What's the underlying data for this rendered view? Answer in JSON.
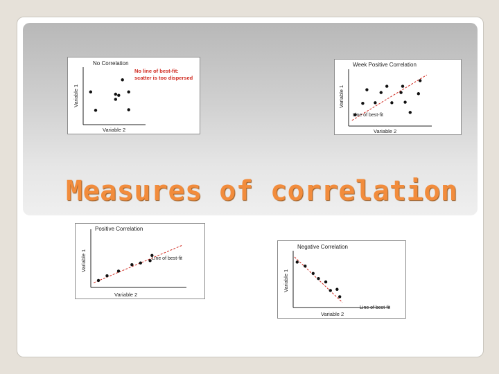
{
  "slide": {
    "title": "Measures of correlation"
  },
  "chart_data": [
    {
      "type": "scatter",
      "title": "No Correlation",
      "xlabel": "Variable 2",
      "ylabel": "Variable 1",
      "xlim": [
        0,
        10
      ],
      "ylim": [
        0,
        10
      ],
      "points": [
        {
          "x": 1.2,
          "y": 5.7
        },
        {
          "x": 2.0,
          "y": 2.5
        },
        {
          "x": 5.2,
          "y": 5.3
        },
        {
          "x": 5.2,
          "y": 4.4
        },
        {
          "x": 6.3,
          "y": 7.8
        },
        {
          "x": 7.3,
          "y": 5.7
        },
        {
          "x": 7.3,
          "y": 2.6
        },
        {
          "x": 5.7,
          "y": 5.1
        }
      ],
      "annotation": {
        "lines": [
          "No line of best-fit:",
          "scatter is too dispersed"
        ],
        "color": "#d0281e"
      }
    },
    {
      "type": "scatter",
      "title": "Week Positive Correlation",
      "xlabel": "Variable 2",
      "ylabel": "Variable 1",
      "xlim": [
        0,
        10
      ],
      "ylim": [
        0,
        10
      ],
      "points": [
        {
          "x": 0.8,
          "y": 2.0
        },
        {
          "x": 1.7,
          "y": 4.0
        },
        {
          "x": 2.2,
          "y": 6.4
        },
        {
          "x": 3.2,
          "y": 4.1
        },
        {
          "x": 3.9,
          "y": 5.9
        },
        {
          "x": 4.6,
          "y": 7.0
        },
        {
          "x": 5.2,
          "y": 4.1
        },
        {
          "x": 6.3,
          "y": 5.9
        },
        {
          "x": 6.5,
          "y": 7.0
        },
        {
          "x": 6.8,
          "y": 4.2
        },
        {
          "x": 7.4,
          "y": 2.4
        },
        {
          "x": 8.4,
          "y": 5.7
        },
        {
          "x": 8.6,
          "y": 8.0
        }
      ],
      "fit_line": {
        "x": [
          0.4,
          9.4
        ],
        "y": [
          1.0,
          9.0
        ],
        "label": "Line of best-fit",
        "color": "#d0281e"
      }
    },
    {
      "type": "scatter",
      "title": "Positive Correlation",
      "xlabel": "Variable 2",
      "ylabel": "Variable 1",
      "xlim": [
        0,
        10
      ],
      "ylim": [
        0,
        10
      ],
      "points": [
        {
          "x": 0.8,
          "y": 1.2
        },
        {
          "x": 1.7,
          "y": 2.0
        },
        {
          "x": 2.9,
          "y": 2.8
        },
        {
          "x": 4.3,
          "y": 3.9
        },
        {
          "x": 5.2,
          "y": 4.2
        },
        {
          "x": 6.2,
          "y": 4.6
        },
        {
          "x": 6.4,
          "y": 5.5
        }
      ],
      "fit_line": {
        "x": [
          0.3,
          9.5
        ],
        "y": [
          0.8,
          7.2
        ],
        "label": "Line of best-fit",
        "color": "#d0281e"
      }
    },
    {
      "type": "scatter",
      "title": "Negative Correlation",
      "xlabel": "Variable 2",
      "ylabel": "Variable 1",
      "xlim": [
        0,
        10
      ],
      "ylim": [
        0,
        10
      ],
      "points": [
        {
          "x": 0.6,
          "y": 8.0
        },
        {
          "x": 1.8,
          "y": 7.3
        },
        {
          "x": 3.0,
          "y": 6.0
        },
        {
          "x": 3.8,
          "y": 5.1
        },
        {
          "x": 4.9,
          "y": 4.5
        },
        {
          "x": 5.6,
          "y": 3.0
        },
        {
          "x": 6.6,
          "y": 3.2
        },
        {
          "x": 7.0,
          "y": 1.9
        }
      ],
      "fit_line": {
        "x": [
          0.2,
          7.4
        ],
        "y": [
          8.9,
          0.9
        ],
        "label": "Line of best-fit",
        "color": "#d0281e"
      }
    }
  ]
}
